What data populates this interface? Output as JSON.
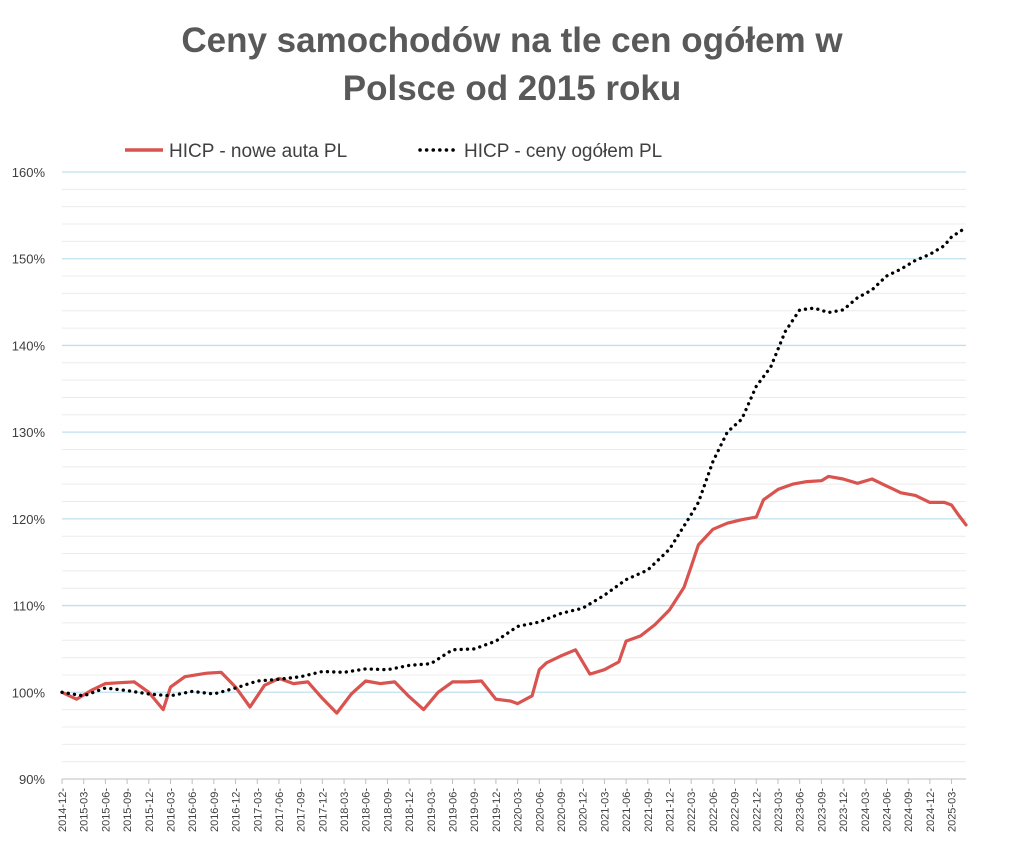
{
  "chart_data": {
    "type": "line",
    "title_line1": "Ceny samochodów na tle cen ogółem w",
    "title_line2": "Polsce od 2015 roku",
    "ylim": [
      90,
      160
    ],
    "y_ticks": [
      {
        "value": 90,
        "label": "90%"
      },
      {
        "value": 100,
        "label": "100%"
      },
      {
        "value": 110,
        "label": "110%"
      },
      {
        "value": 120,
        "label": "120%"
      },
      {
        "value": 130,
        "label": "130%"
      },
      {
        "value": 140,
        "label": "140%"
      },
      {
        "value": 150,
        "label": "150%"
      },
      {
        "value": 160,
        "label": "160%"
      }
    ],
    "grid": true,
    "legend_position": "top",
    "x_start": "2014-12",
    "x_end": "2025-05",
    "x_ticks": [
      "2014-12-",
      "2015-03-",
      "2015-06-",
      "2015-09-",
      "2015-12-",
      "2016-03-",
      "2016-06-",
      "2016-09-",
      "2016-12-",
      "2017-03-",
      "2017-06-",
      "2017-09-",
      "2017-12-",
      "2018-03-",
      "2018-06-",
      "2018-09-",
      "2018-12-",
      "2019-03-",
      "2019-06-",
      "2019-09-",
      "2019-12-",
      "2020-03-",
      "2020-06-",
      "2020-09-",
      "2020-12-",
      "2021-03-",
      "2021-06-",
      "2021-09-",
      "2021-12-",
      "2022-03-",
      "2022-06-",
      "2022-09-",
      "2022-12-",
      "2023-03-",
      "2023-06-",
      "2023-09-",
      "2023-12-",
      "2024-03-",
      "2024-06-",
      "2024-09-",
      "2024-12-",
      "2025-03-"
    ],
    "series": [
      {
        "name": "HICP - nowe auta PL",
        "color": "#d9534f",
        "style": "solid",
        "points": [
          [
            "2014-12",
            100.0
          ],
          [
            "2015-02",
            99.2
          ],
          [
            "2015-04",
            100.2
          ],
          [
            "2015-06",
            101.0
          ],
          [
            "2015-08",
            101.1
          ],
          [
            "2015-10",
            101.2
          ],
          [
            "2015-12",
            100.0
          ],
          [
            "2016-02",
            98.0
          ],
          [
            "2016-03",
            100.6
          ],
          [
            "2016-05",
            101.8
          ],
          [
            "2016-08",
            102.2
          ],
          [
            "2016-10",
            102.3
          ],
          [
            "2016-12",
            100.6
          ],
          [
            "2017-02",
            98.3
          ],
          [
            "2017-04",
            100.8
          ],
          [
            "2017-06",
            101.6
          ],
          [
            "2017-08",
            101.0
          ],
          [
            "2017-10",
            101.2
          ],
          [
            "2017-12",
            99.3
          ],
          [
            "2018-02",
            97.6
          ],
          [
            "2018-04",
            99.8
          ],
          [
            "2018-06",
            101.3
          ],
          [
            "2018-08",
            101.0
          ],
          [
            "2018-10",
            101.2
          ],
          [
            "2018-12",
            99.5
          ],
          [
            "2019-02",
            98.0
          ],
          [
            "2019-04",
            100.0
          ],
          [
            "2019-06",
            101.2
          ],
          [
            "2019-08",
            101.2
          ],
          [
            "2019-10",
            101.3
          ],
          [
            "2019-12",
            99.2
          ],
          [
            "2020-02",
            99.0
          ],
          [
            "2020-03",
            98.7
          ],
          [
            "2020-05",
            99.6
          ],
          [
            "2020-06",
            102.6
          ],
          [
            "2020-07",
            103.4
          ],
          [
            "2020-09",
            104.2
          ],
          [
            "2020-11",
            104.9
          ],
          [
            "2021-01",
            102.1
          ],
          [
            "2021-03",
            102.6
          ],
          [
            "2021-05",
            103.5
          ],
          [
            "2021-06",
            105.9
          ],
          [
            "2021-08",
            106.5
          ],
          [
            "2021-10",
            107.8
          ],
          [
            "2021-12",
            109.5
          ],
          [
            "2022-02",
            112.1
          ],
          [
            "2022-03",
            114.5
          ],
          [
            "2022-04",
            117.0
          ],
          [
            "2022-06",
            118.8
          ],
          [
            "2022-08",
            119.5
          ],
          [
            "2022-10",
            119.9
          ],
          [
            "2022-12",
            120.2
          ],
          [
            "2023-01",
            122.2
          ],
          [
            "2023-03",
            123.4
          ],
          [
            "2023-05",
            124.0
          ],
          [
            "2023-07",
            124.3
          ],
          [
            "2023-09",
            124.4
          ],
          [
            "2023-10",
            124.9
          ],
          [
            "2023-12",
            124.6
          ],
          [
            "2024-02",
            124.1
          ],
          [
            "2024-04",
            124.6
          ],
          [
            "2024-06",
            123.8
          ],
          [
            "2024-08",
            123.0
          ],
          [
            "2024-10",
            122.7
          ],
          [
            "2024-12",
            121.9
          ],
          [
            "2025-02",
            121.9
          ],
          [
            "2025-03",
            121.6
          ],
          [
            "2025-04",
            120.4
          ],
          [
            "2025-05",
            119.3
          ]
        ]
      },
      {
        "name": "HICP - ceny ogółem PL",
        "color": "#000000",
        "style": "dotted",
        "points": [
          [
            "2014-12",
            100.0
          ],
          [
            "2015-03",
            99.6
          ],
          [
            "2015-06",
            100.5
          ],
          [
            "2015-09",
            100.2
          ],
          [
            "2015-12",
            99.8
          ],
          [
            "2016-03",
            99.6
          ],
          [
            "2016-06",
            100.1
          ],
          [
            "2016-09",
            99.8
          ],
          [
            "2016-12",
            100.5
          ],
          [
            "2017-03",
            101.3
          ],
          [
            "2017-06",
            101.5
          ],
          [
            "2017-09",
            101.8
          ],
          [
            "2017-12",
            102.4
          ],
          [
            "2018-03",
            102.3
          ],
          [
            "2018-06",
            102.7
          ],
          [
            "2018-09",
            102.6
          ],
          [
            "2018-12",
            103.1
          ],
          [
            "2019-03",
            103.3
          ],
          [
            "2019-06",
            104.9
          ],
          [
            "2019-09",
            105.0
          ],
          [
            "2019-12",
            105.9
          ],
          [
            "2020-03",
            107.6
          ],
          [
            "2020-06",
            108.1
          ],
          [
            "2020-09",
            109.1
          ],
          [
            "2020-12",
            109.7
          ],
          [
            "2021-03",
            111.2
          ],
          [
            "2021-06",
            113.0
          ],
          [
            "2021-09",
            114.1
          ],
          [
            "2021-12",
            116.5
          ],
          [
            "2022-03",
            120.5
          ],
          [
            "2022-04",
            121.9
          ],
          [
            "2022-06",
            126.6
          ],
          [
            "2022-08",
            130.0
          ],
          [
            "2022-10",
            131.5
          ],
          [
            "2022-12",
            135.3
          ],
          [
            "2023-02",
            137.5
          ],
          [
            "2023-04",
            141.6
          ],
          [
            "2023-06",
            144.1
          ],
          [
            "2023-08",
            144.3
          ],
          [
            "2023-10",
            143.8
          ],
          [
            "2023-12",
            144.1
          ],
          [
            "2024-02",
            145.5
          ],
          [
            "2024-04",
            146.4
          ],
          [
            "2024-06",
            148.0
          ],
          [
            "2024-08",
            148.8
          ],
          [
            "2024-10",
            149.8
          ],
          [
            "2024-12",
            150.5
          ],
          [
            "2025-02",
            151.5
          ],
          [
            "2025-03",
            152.5
          ],
          [
            "2025-05",
            153.6
          ]
        ]
      }
    ]
  }
}
